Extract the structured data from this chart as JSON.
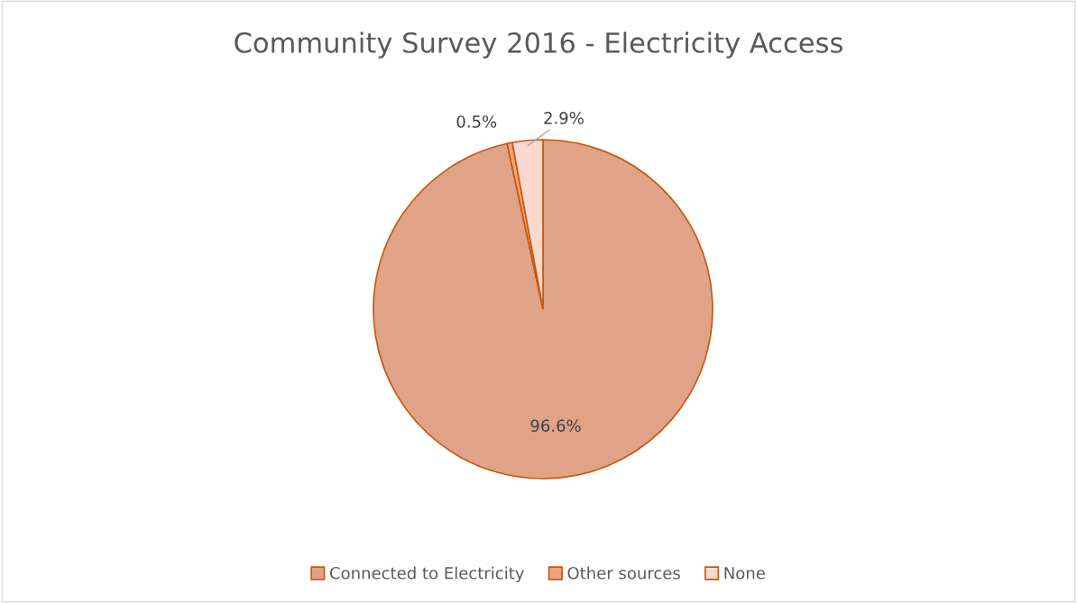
{
  "chart_data": {
    "type": "pie",
    "title": "Community Survey 2016 - Electricity Access",
    "categories": [
      "Connected to Electricity",
      "Other sources",
      "None"
    ],
    "values": [
      96.6,
      0.5,
      2.9
    ],
    "value_labels": [
      "96.6%",
      "0.5%",
      "2.9%"
    ],
    "colors": [
      "#e0a388",
      "#f4a27c",
      "#fad8cf"
    ],
    "legend": "bottom"
  }
}
